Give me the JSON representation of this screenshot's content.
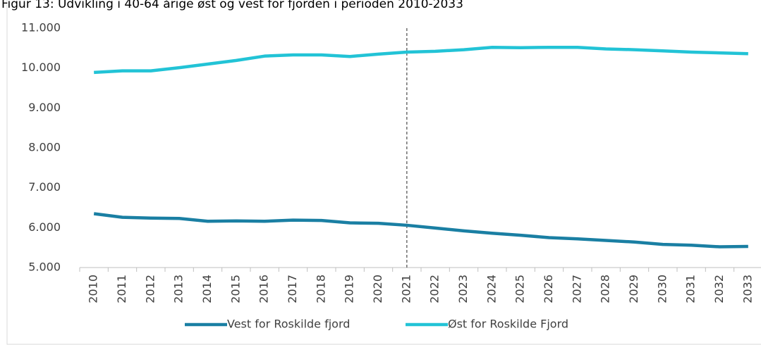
{
  "chart_data": {
    "type": "line",
    "title": "Figur 13: Udvikling i 40-64 årige øst og vest for fjorden i perioden 2010-2033",
    "categories": [
      "2010",
      "2011",
      "2012",
      "2013",
      "2014",
      "2015",
      "2016",
      "2017",
      "2018",
      "2019",
      "2020",
      "2021",
      "2022",
      "2023",
      "2024",
      "2025",
      "2026",
      "2027",
      "2028",
      "2029",
      "2030",
      "2031",
      "2032",
      "2033"
    ],
    "series": [
      {
        "name": "Vest for Roskilde fjord",
        "color": "#1a7fa3",
        "values": [
          6350,
          6260,
          6240,
          6230,
          6160,
          6170,
          6160,
          6190,
          6180,
          6120,
          6110,
          6060,
          5990,
          5920,
          5860,
          5810,
          5750,
          5720,
          5680,
          5640,
          5580,
          5560,
          5520,
          5530
        ]
      },
      {
        "name": "Øst for Roskilde Fjord",
        "color": "#22c3d6",
        "values": [
          9890,
          9930,
          9930,
          10010,
          10100,
          10190,
          10300,
          10330,
          10330,
          10290,
          10350,
          10400,
          10420,
          10460,
          10520,
          10510,
          10520,
          10520,
          10480,
          10460,
          10430,
          10400,
          10380,
          10360
        ]
      }
    ],
    "ylim": [
      5000,
      11000
    ],
    "yticks": [
      {
        "value": 5000,
        "label": "5.000"
      },
      {
        "value": 6000,
        "label": "6.000"
      },
      {
        "value": 7000,
        "label": "7.000"
      },
      {
        "value": 8000,
        "label": "8.000"
      },
      {
        "value": 9000,
        "label": "9.000"
      },
      {
        "value": 10000,
        "label": "10.000"
      },
      {
        "value": 11000,
        "label": "11.000"
      }
    ],
    "vline": "2021",
    "legend": "bottom"
  }
}
